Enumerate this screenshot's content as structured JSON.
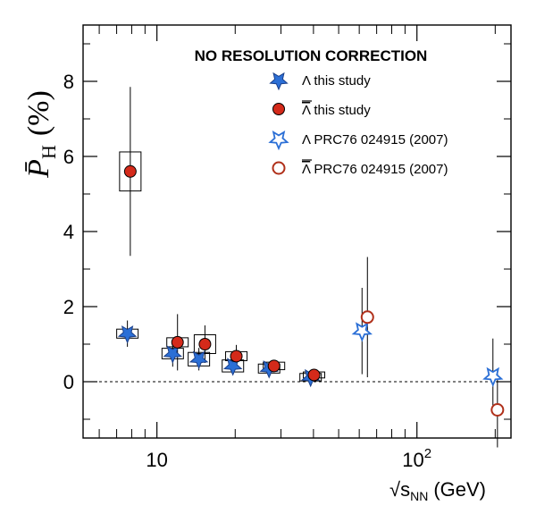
{
  "chart_data": {
    "type": "scatter",
    "title": "NO RESOLUTION CORRECTION",
    "ylabel": "P̄H (%)",
    "ylabel_main": "P̄",
    "ylabel_sub": "H",
    "ylabel_unit": "(%)",
    "xlabel": "√sNN (GeV)",
    "xlabel_main": "√s",
    "xlabel_sub": "NN",
    "xlabel_unit": "(GeV)",
    "x_scale": "log",
    "xlim": [
      5.2,
      230
    ],
    "ylim": [
      -1.5,
      9.5
    ],
    "x_ticks": [
      {
        "value": 10,
        "label": "10",
        "exp": ""
      },
      {
        "value": 100,
        "label": "10",
        "exp": "2"
      }
    ],
    "y_ticks": [
      {
        "value": 0,
        "label": "0"
      },
      {
        "value": 2,
        "label": "2"
      },
      {
        "value": 4,
        "label": "4"
      },
      {
        "value": 6,
        "label": "6"
      },
      {
        "value": 8,
        "label": "8"
      }
    ],
    "reference_line": {
      "y": 0,
      "style": "dashed"
    },
    "series": [
      {
        "name": "Λ this study",
        "marker": "star",
        "filled": true,
        "color": "#2b6fd6",
        "points": [
          {
            "x": 7.7,
            "y": 1.28,
            "err": 0.35,
            "sys": 0.12
          },
          {
            "x": 11.5,
            "y": 0.75,
            "err": 0.35,
            "sys": 0.14
          },
          {
            "x": 14.5,
            "y": 0.6,
            "err": 0.3,
            "sys": 0.18
          },
          {
            "x": 19.6,
            "y": 0.42,
            "err": 0.2,
            "sys": 0.16
          },
          {
            "x": 27,
            "y": 0.35,
            "err": 0.15,
            "sys": 0.12
          },
          {
            "x": 39,
            "y": 0.12,
            "err": 0.1,
            "sys": 0.1
          }
        ]
      },
      {
        "name": "Λ̄ this study",
        "marker": "circle",
        "filled": true,
        "color": "#d42a1a",
        "points": [
          {
            "x": 7.9,
            "y": 5.6,
            "err": 2.25,
            "sys": 0.52
          },
          {
            "x": 12.0,
            "y": 1.05,
            "err": 0.75,
            "sys": 0.12
          },
          {
            "x": 15.3,
            "y": 1.0,
            "err": 0.5,
            "sys": 0.25
          },
          {
            "x": 20.2,
            "y": 0.68,
            "err": 0.3,
            "sys": 0.12
          },
          {
            "x": 28.2,
            "y": 0.42,
            "err": 0.15,
            "sys": 0.1
          },
          {
            "x": 40.2,
            "y": 0.18,
            "err": 0.12,
            "sys": 0.08
          }
        ]
      },
      {
        "name": "Λ PRC76 024915 (2007)",
        "marker": "star",
        "filled": false,
        "color": "#2b6fd6",
        "points": [
          {
            "x": 61.5,
            "y": 1.35,
            "err": 1.15
          },
          {
            "x": 196,
            "y": 0.15,
            "err": 1.0
          }
        ]
      },
      {
        "name": "Λ̄ PRC76 024915 (2007)",
        "marker": "circle",
        "filled": false,
        "color": "#b0301a",
        "points": [
          {
            "x": 64.5,
            "y": 1.72,
            "err": 1.6
          },
          {
            "x": 204,
            "y": -0.75,
            "err": 1.0
          }
        ]
      }
    ],
    "legend": {
      "placement": "top-right",
      "entries": [
        {
          "symbol": "Λ",
          "bar": false,
          "label": " this study"
        },
        {
          "symbol": "Λ",
          "bar": true,
          "label": " this study"
        },
        {
          "symbol": "Λ",
          "bar": false,
          "label": " PRC76 024915 (2007)"
        },
        {
          "symbol": "Λ",
          "bar": true,
          "label": " PRC76 024915 (2007)"
        }
      ]
    }
  }
}
